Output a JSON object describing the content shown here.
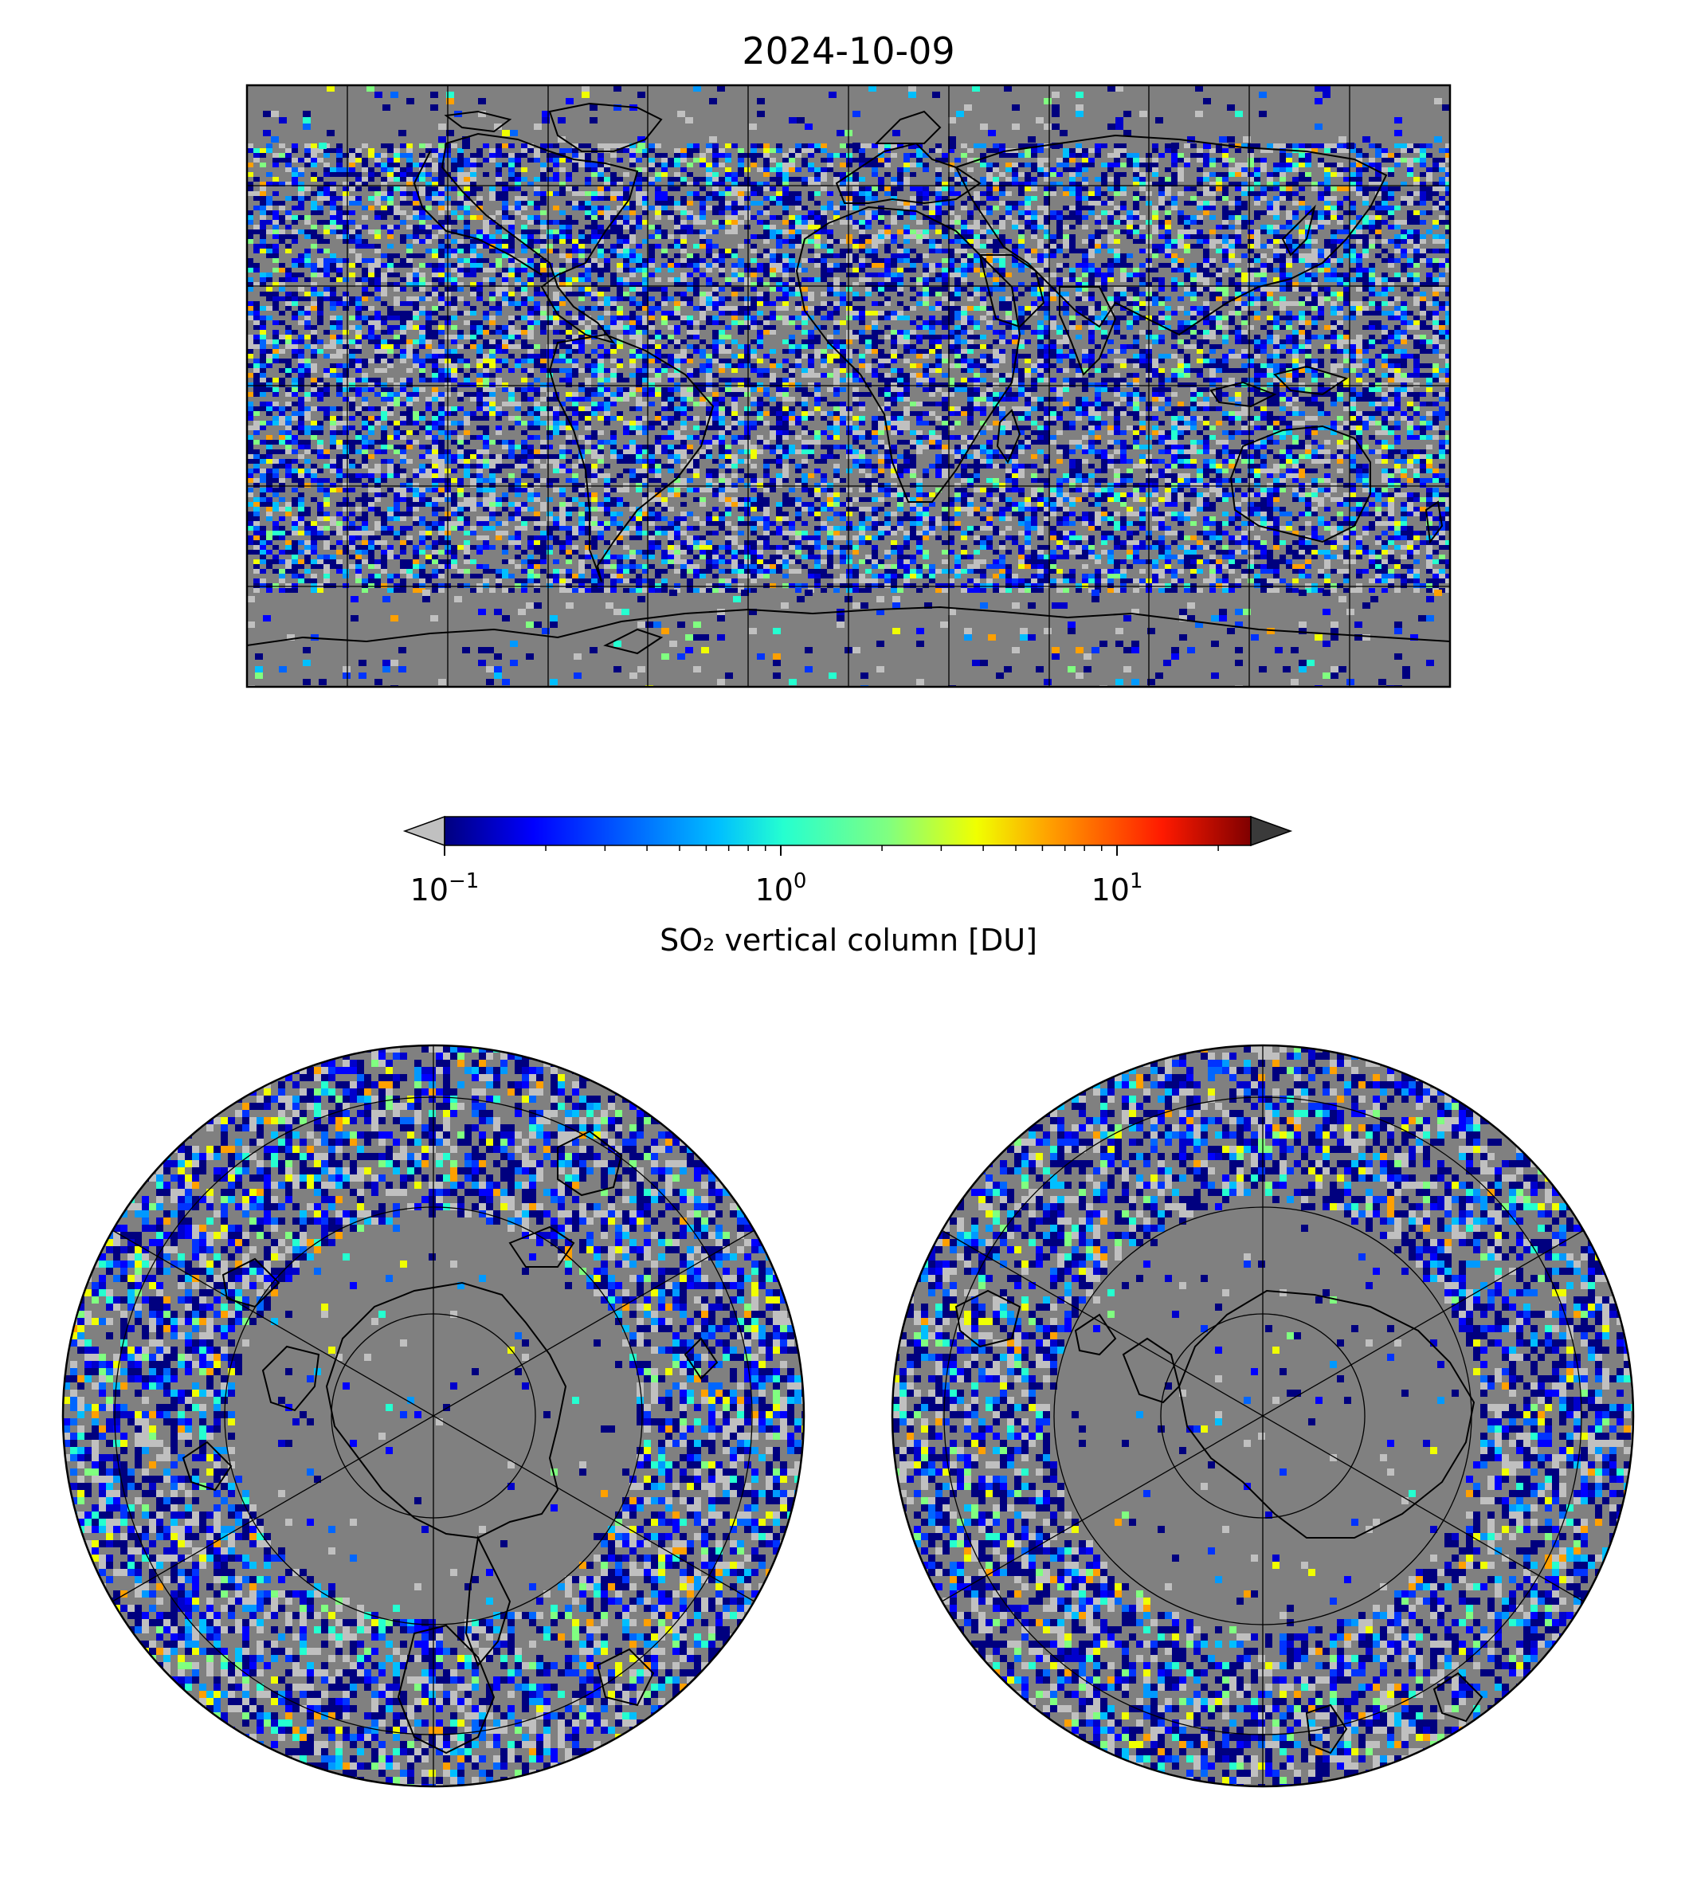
{
  "title": "2024-10-09",
  "colorbar": {
    "label": "SO₂ vertical column [DU]",
    "scale": "log",
    "range": [
      0.1,
      25
    ],
    "extend": "both",
    "ticks": [
      {
        "value": 0.1,
        "base": "10",
        "exp": "−1"
      },
      {
        "value": 1,
        "base": "10",
        "exp": "0"
      },
      {
        "value": 10,
        "base": "10",
        "exp": "1"
      }
    ],
    "colormap": "jet",
    "under_color": "#c0c0c0",
    "over_color": "#3a3a3a"
  },
  "map_background": "#808080",
  "panels": [
    {
      "id": "global",
      "projection": "plate-carree",
      "gridlines": {
        "lon_step_deg": 30,
        "lat_step_deg": 30
      }
    },
    {
      "id": "north-pole",
      "projection": "north-polar-stereographic"
    },
    {
      "id": "south-pole",
      "projection": "south-polar-stereographic"
    }
  ]
}
